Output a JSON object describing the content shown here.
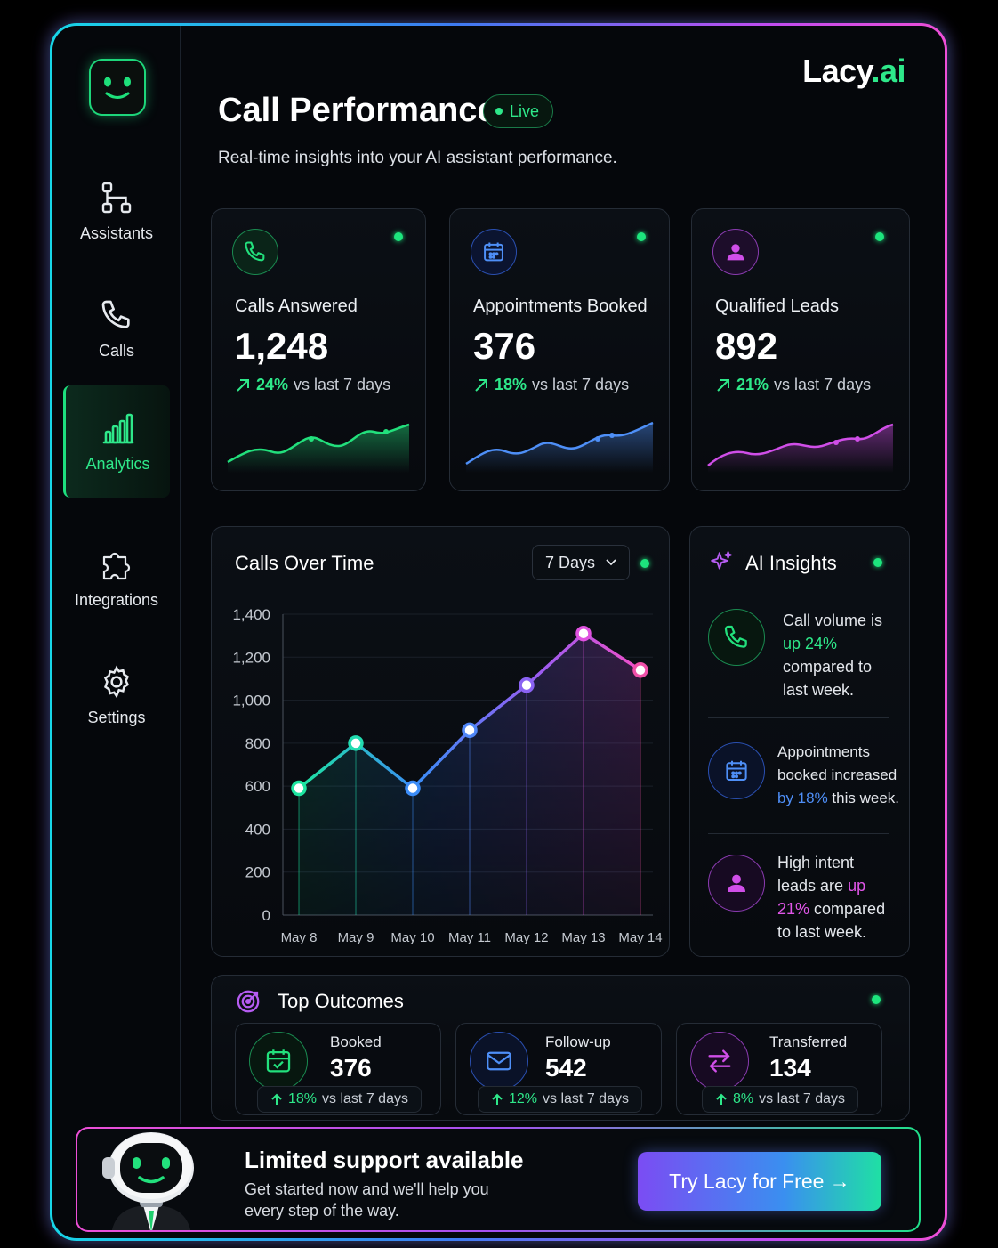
{
  "brand": {
    "name": "Lacy",
    "suffix": ".ai"
  },
  "header": {
    "title": "Call Performance",
    "live_badge": "Live",
    "subtitle": "Real-time insights into your AI assistant performance."
  },
  "sidebar": {
    "items": [
      {
        "label": "Assistants",
        "icon": "hierarchy-icon"
      },
      {
        "label": "Calls",
        "icon": "phone-icon"
      },
      {
        "label": "Analytics",
        "icon": "bar-chart-icon",
        "active": true
      },
      {
        "label": "Integrations",
        "icon": "puzzle-icon"
      },
      {
        "label": "Settings",
        "icon": "gear-icon"
      }
    ]
  },
  "stats": [
    {
      "label": "Calls Answered",
      "value": "1,248",
      "delta": "24%",
      "delta_suffix": "vs last 7 days",
      "color": "#22e07c",
      "icon": "phone-icon"
    },
    {
      "label": "Appointments Booked",
      "value": "376",
      "delta": "18%",
      "delta_suffix": "vs last 7 days",
      "color": "#4e8ff7",
      "icon": "calendar-icon"
    },
    {
      "label": "Qualified Leads",
      "value": "892",
      "delta": "21%",
      "delta_suffix": "vs last 7 days",
      "color": "#d04ee8",
      "icon": "user-icon"
    }
  ],
  "calls_over_time": {
    "title": "Calls Over Time",
    "range_select": "7 Days"
  },
  "chart_data": {
    "type": "line",
    "title": "Calls Over Time",
    "x": [
      "May 8",
      "May 9",
      "May 10",
      "May 11",
      "May 12",
      "May 13",
      "May 14"
    ],
    "y_ticks": [
      "0",
      "200",
      "400",
      "600",
      "800",
      "1,000",
      "1,200",
      "1,400"
    ],
    "series": [
      {
        "values": [
          590,
          800,
          590,
          860,
          1070,
          1310,
          1140
        ]
      }
    ],
    "ylim": [
      0,
      1400
    ],
    "grid": true
  },
  "ai_insights": {
    "title": "AI Insights",
    "items": [
      {
        "pre": "Call volume is ",
        "hl": "up 24%",
        "post": " compared to last week.",
        "icon": "phone-icon"
      },
      {
        "pre": "Appointments booked increased ",
        "hl": "by 18%",
        "post": " this week.",
        "icon": "calendar-icon"
      },
      {
        "pre": "High intent leads are ",
        "hl": "up 21%",
        "post": " compared to last week.",
        "icon": "user-icon"
      }
    ]
  },
  "top_outcomes": {
    "title": "Top Outcomes",
    "items": [
      {
        "name": "Booked",
        "value": "376",
        "delta": "18%",
        "delta_suffix": "vs last 7 days",
        "icon": "calendar-check-icon"
      },
      {
        "name": "Follow-up",
        "value": "542",
        "delta": "12%",
        "delta_suffix": "vs last 7 days",
        "icon": "mail-icon"
      },
      {
        "name": "Transferred",
        "value": "134",
        "delta": "8%",
        "delta_suffix": "vs last 7 days",
        "icon": "transfer-arrows-icon"
      }
    ]
  },
  "banner": {
    "title": "Limited support available",
    "subtitle": "Get started now and we'll help you every step of the way.",
    "cta": "Try Lacy for Free →"
  }
}
